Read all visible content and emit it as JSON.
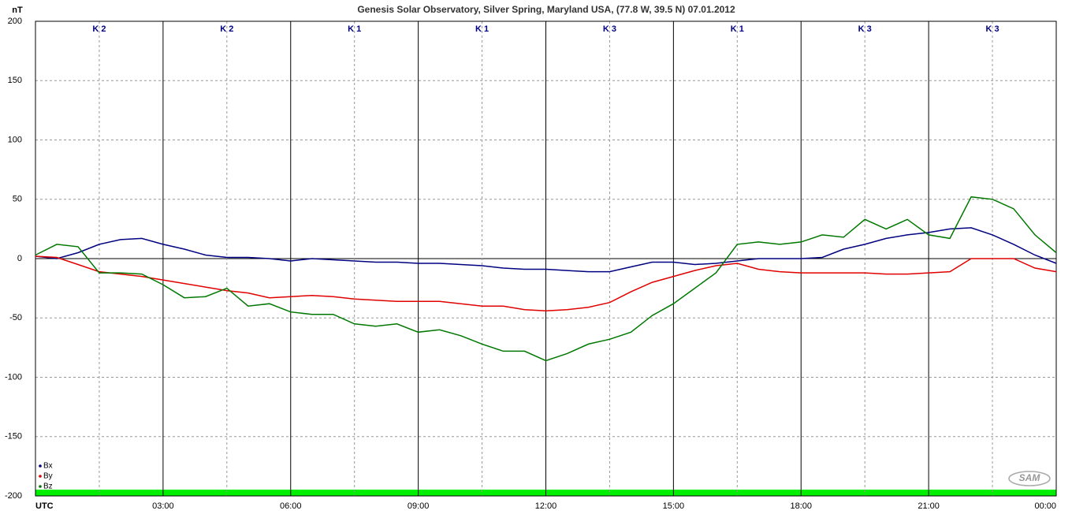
{
  "chart_data": {
    "type": "line",
    "title": "Genesis Solar Observatory, Silver Spring, Maryland USA, (77.8 W, 39.5 N)  07.01.2012",
    "y_label": "nT",
    "logo": "SAM",
    "k_labels": [
      "K 2",
      "K 2",
      "K 1",
      "K 1",
      "K 3",
      "K 1",
      "K 3",
      "K 3"
    ],
    "x": [
      0,
      0.5,
      1,
      1.5,
      2,
      2.5,
      3,
      3.5,
      4,
      4.5,
      5,
      5.5,
      6,
      6.5,
      7,
      7.5,
      8,
      8.5,
      9,
      9.5,
      10,
      10.5,
      11,
      11.5,
      12,
      12.5,
      13,
      13.5,
      14,
      14.5,
      15,
      15.5,
      16,
      16.5,
      17,
      17.5,
      18,
      18.5,
      19,
      19.5,
      20,
      20.5,
      21,
      21.5,
      22,
      22.5,
      23,
      23.5,
      24
    ],
    "series": [
      {
        "name": "Bx",
        "color": "#000080",
        "values": [
          2,
          0,
          5,
          12,
          16,
          17,
          12,
          8,
          3,
          1,
          1,
          0,
          -2,
          0,
          -1,
          -2,
          -3,
          -3,
          -4,
          -4,
          -5,
          -6,
          -8,
          -9,
          -9,
          -10,
          -11,
          -11,
          -7,
          -3,
          -3,
          -5,
          -4,
          -2,
          0,
          0,
          0,
          1,
          8,
          12,
          17,
          20,
          22,
          25,
          26,
          20,
          12,
          3,
          -4
        ]
      },
      {
        "name": "By",
        "color": "#e00000",
        "values": [
          2,
          1,
          -5,
          -11,
          -13,
          -15,
          -18,
          -21,
          -24,
          -27,
          -29,
          -33,
          -32,
          -31,
          -32,
          -34,
          -35,
          -36,
          -36,
          -36,
          -38,
          -40,
          -40,
          -43,
          -44,
          -43,
          -41,
          -37,
          -28,
          -20,
          -15,
          -10,
          -6,
          -4,
          -9,
          -11,
          -12,
          -12,
          -12,
          -12,
          -13,
          -13,
          -12,
          -11,
          0,
          0,
          0,
          -8,
          -11
        ]
      },
      {
        "name": "Bz",
        "color": "#007800",
        "values": [
          3,
          12,
          10,
          -12,
          -12,
          -13,
          -22,
          -33,
          -32,
          -25,
          -40,
          -38,
          -45,
          -47,
          -47,
          -55,
          -57,
          -55,
          -62,
          -60,
          -65,
          -72,
          -78,
          -78,
          -86,
          -80,
          -72,
          -68,
          -62,
          -48,
          -38,
          -25,
          -12,
          12,
          14,
          12,
          14,
          20,
          18,
          33,
          25,
          33,
          20,
          17,
          52,
          50,
          42,
          20,
          5
        ]
      }
    ],
    "xlim": [
      0,
      24
    ],
    "xticks": [
      {
        "value": 0,
        "label": "UTC"
      },
      {
        "value": 3,
        "label": "03:00"
      },
      {
        "value": 6,
        "label": "06:00"
      },
      {
        "value": 9,
        "label": "09:00"
      },
      {
        "value": 12,
        "label": "12:00"
      },
      {
        "value": 15,
        "label": "15:00"
      },
      {
        "value": 18,
        "label": "18:00"
      },
      {
        "value": 21,
        "label": "21:00"
      },
      {
        "value": 24,
        "label": "00:00"
      }
    ],
    "ylim": [
      -200,
      200
    ],
    "yticks": [
      200,
      150,
      100,
      50,
      0,
      -50,
      -100,
      -150,
      -200
    ],
    "grid": true,
    "legend": "bottom-left"
  }
}
